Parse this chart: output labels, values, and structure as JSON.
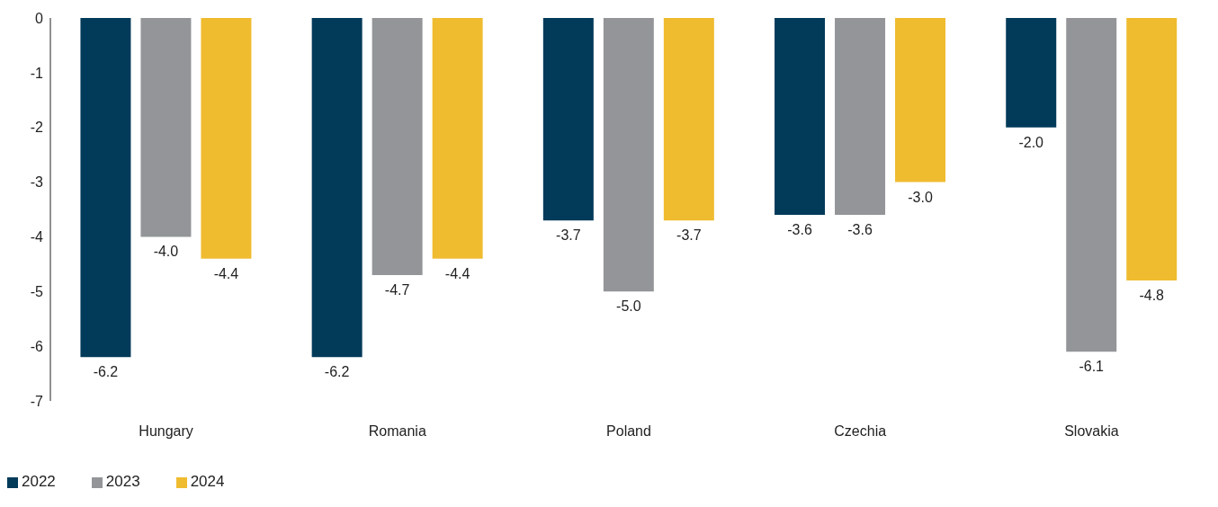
{
  "chart_data": {
    "type": "bar",
    "categories": [
      "Hungary",
      "Romania",
      "Poland",
      "Czechia",
      "Slovakia"
    ],
    "series": [
      {
        "name": "2022",
        "color": "#023a5a",
        "values": [
          -6.2,
          -6.2,
          -3.7,
          -3.6,
          -2.0
        ],
        "value_labels": [
          "-6.2",
          "-6.2",
          "-3.7",
          "-3.6",
          "-2.0"
        ]
      },
      {
        "name": "2023",
        "color": "#939598",
        "values": [
          -4.0,
          -4.7,
          -5.0,
          -3.6,
          -6.1
        ],
        "value_labels": [
          "-4.0",
          "-4.7",
          "-5.0",
          "-3.6",
          "-6.1"
        ]
      },
      {
        "name": "2024",
        "color": "#efbb2f",
        "values": [
          -4.4,
          -4.4,
          -3.7,
          -3.0,
          -4.8
        ],
        "value_labels": [
          "-4.4",
          "-4.4",
          "-3.7",
          "-3.0",
          "-4.8"
        ]
      }
    ],
    "ylim": [
      -7,
      0
    ],
    "yticks": [
      0,
      -1,
      -2,
      -3,
      -4,
      -5,
      -6,
      -7
    ],
    "grid": false,
    "legend": "bottom left"
  }
}
